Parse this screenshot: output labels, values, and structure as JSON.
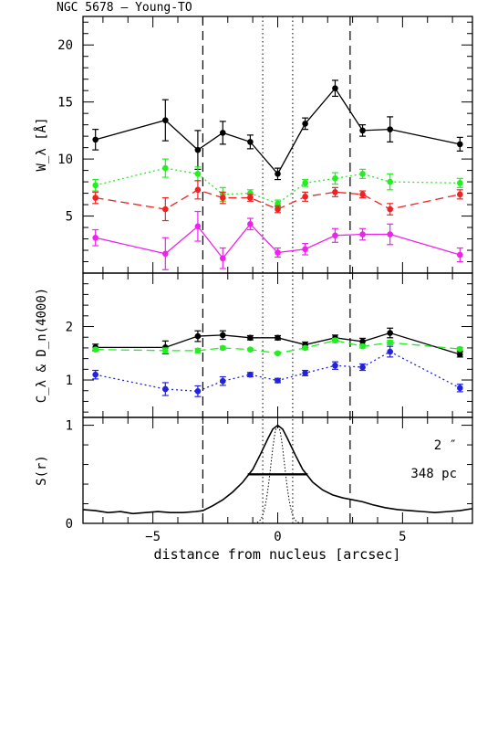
{
  "title": "NGC 5678  –  Young-TO",
  "colors": {
    "black": "#000000",
    "green": "#22ee22",
    "red": "#ee2222",
    "magenta": "#ee22ee",
    "blue": "#2222dd"
  },
  "chart_data": [
    {
      "type": "line",
      "panel": "top",
      "ylabel": "W_λ [Å]",
      "ylim": [
        0,
        22.5
      ],
      "yticks": [
        5,
        10,
        15,
        20
      ],
      "xlim": [
        -7.8,
        7.8
      ],
      "x": [
        -7.3,
        -4.5,
        -3.2,
        -2.2,
        -1.1,
        0.0,
        1.1,
        2.3,
        3.4,
        4.5,
        7.3
      ],
      "series": [
        {
          "color": "black",
          "style": "solid",
          "values": [
            11.7,
            13.4,
            10.8,
            12.3,
            11.5,
            8.7,
            13.1,
            16.2,
            12.5,
            12.6,
            11.3
          ],
          "errors": [
            0.9,
            1.8,
            1.7,
            1.0,
            0.6,
            0.5,
            0.5,
            0.7,
            0.5,
            1.1,
            0.6
          ]
        },
        {
          "color": "green",
          "style": "dotted",
          "values": [
            7.7,
            9.2,
            8.7,
            6.9,
            7.0,
            6.1,
            7.9,
            8.3,
            8.7,
            8.0,
            7.9
          ],
          "errors": [
            0.5,
            0.8,
            0.6,
            0.6,
            0.3,
            0.3,
            0.3,
            0.5,
            0.4,
            0.7,
            0.4
          ]
        },
        {
          "color": "red",
          "style": "dashed",
          "values": [
            6.6,
            5.6,
            7.3,
            6.6,
            6.6,
            5.6,
            6.7,
            7.1,
            6.9,
            5.6,
            6.9
          ],
          "errors": [
            0.5,
            1.0,
            0.8,
            0.5,
            0.3,
            0.3,
            0.4,
            0.4,
            0.3,
            0.5,
            0.4
          ]
        },
        {
          "color": "magenta",
          "style": "solid",
          "values": [
            3.1,
            1.7,
            4.1,
            1.3,
            4.3,
            1.8,
            2.1,
            3.3,
            3.4,
            3.4,
            1.6
          ],
          "errors": [
            0.7,
            1.4,
            1.3,
            0.9,
            0.5,
            0.4,
            0.5,
            0.6,
            0.5,
            0.9,
            0.6
          ]
        }
      ]
    },
    {
      "type": "line",
      "panel": "middle",
      "ylabel": "C_λ & D_n(4000)",
      "ylim": [
        0.3,
        3.0
      ],
      "yticks": [
        1,
        2
      ],
      "xlim": [
        -7.8,
        7.8
      ],
      "x": [
        -7.3,
        -4.5,
        -3.2,
        -2.2,
        -1.1,
        0.0,
        1.1,
        2.3,
        3.4,
        4.5,
        7.3
      ],
      "series": [
        {
          "color": "black",
          "style": "solid",
          "values": [
            1.61,
            1.61,
            1.82,
            1.84,
            1.79,
            1.79,
            1.66,
            1.79,
            1.72,
            1.88,
            1.48
          ],
          "errors": [
            0.06,
            0.12,
            0.1,
            0.08,
            0.04,
            0.04,
            0.05,
            0.05,
            0.06,
            0.09,
            0.05
          ]
        },
        {
          "color": "green",
          "style": "dashed",
          "values": [
            1.57,
            1.55,
            1.55,
            1.6,
            1.57,
            1.5,
            1.6,
            1.74,
            1.63,
            1.7,
            1.58
          ],
          "errors": [
            0.03,
            0.05,
            0.04,
            0.03,
            0.02,
            0.02,
            0.03,
            0.04,
            0.03,
            0.04,
            0.03
          ]
        },
        {
          "color": "blue",
          "style": "dotted",
          "values": [
            1.1,
            0.83,
            0.79,
            0.98,
            1.1,
            0.99,
            1.13,
            1.27,
            1.24,
            1.53,
            0.85
          ],
          "errors": [
            0.08,
            0.12,
            0.1,
            0.08,
            0.04,
            0.04,
            0.05,
            0.07,
            0.06,
            0.1,
            0.07
          ]
        }
      ]
    },
    {
      "type": "line",
      "panel": "bottom",
      "ylabel": "S(r)",
      "ylim": [
        0,
        1.08
      ],
      "yticks": [
        0,
        1
      ],
      "xlim": [
        -7.8,
        7.8
      ],
      "xticks": [
        -5,
        0,
        5
      ],
      "xlabel": "distance from nucleus [arcsec]",
      "profile_solid": {
        "x": [
          -7.8,
          -7.3,
          -6.8,
          -6.3,
          -5.8,
          -5.3,
          -4.8,
          -4.3,
          -3.8,
          -3.3,
          -3.0,
          -2.6,
          -2.2,
          -1.8,
          -1.4,
          -1.0,
          -0.7,
          -0.4,
          -0.2,
          0.0,
          0.2,
          0.4,
          0.7,
          1.0,
          1.4,
          1.8,
          2.2,
          2.6,
          3.0,
          3.4,
          3.8,
          4.3,
          4.8,
          5.3,
          5.8,
          6.3,
          6.8,
          7.3,
          7.8
        ],
        "values": [
          0.14,
          0.13,
          0.11,
          0.12,
          0.1,
          0.11,
          0.12,
          0.11,
          0.11,
          0.12,
          0.13,
          0.18,
          0.24,
          0.32,
          0.42,
          0.55,
          0.7,
          0.86,
          0.96,
          1.0,
          0.96,
          0.86,
          0.7,
          0.55,
          0.42,
          0.34,
          0.29,
          0.26,
          0.24,
          0.22,
          0.19,
          0.16,
          0.14,
          0.13,
          0.12,
          0.11,
          0.12,
          0.13,
          0.15
        ]
      },
      "profile_sigma": 0.27,
      "fwhm_bar": {
        "x1": -1.2,
        "x2": 1.2,
        "y": 0.5
      },
      "annotations": [
        "2 ″",
        "348 pc"
      ]
    }
  ],
  "vlines_dashed": [
    -3.0,
    2.9
  ],
  "vlines_dotted": [
    -0.6,
    0.6
  ]
}
